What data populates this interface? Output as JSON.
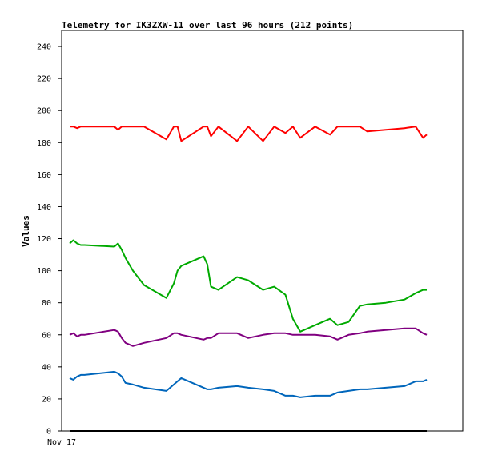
{
  "chart_data": {
    "type": "line",
    "title": "Telemetry for IK3ZXW-11 over last 96 hours (212 points)",
    "ylabel": "Values",
    "xlabel": "",
    "x_tick_labels": [
      "Nov 17"
    ],
    "ylim": [
      0,
      250
    ],
    "y_ticks": [
      0,
      20,
      40,
      60,
      80,
      100,
      120,
      140,
      160,
      180,
      200,
      220,
      240
    ],
    "grid": false,
    "x_hours": [
      0,
      1,
      2,
      3,
      4,
      12,
      13,
      14,
      15,
      17,
      20,
      26,
      28,
      29,
      30,
      36,
      37,
      38,
      40,
      45,
      48,
      52,
      55,
      58,
      60,
      62,
      66,
      70,
      72,
      75,
      78,
      80,
      85,
      90,
      93,
      95,
      96
    ],
    "series": [
      {
        "color": "#ff0000",
        "values": [
          190,
          190,
          189,
          190,
          190,
          190,
          188,
          190,
          190,
          190,
          190,
          182,
          190,
          190,
          181,
          190,
          190,
          184,
          190,
          181,
          190,
          181,
          190,
          186,
          190,
          183,
          190,
          185,
          190,
          190,
          190,
          187,
          188,
          189,
          190,
          183,
          185
        ]
      },
      {
        "color": "#00aa00",
        "values": [
          117,
          119,
          117,
          116,
          116,
          115,
          117,
          113,
          108,
          100,
          91,
          83,
          92,
          100,
          103,
          109,
          104,
          90,
          88,
          96,
          94,
          88,
          90,
          85,
          70,
          62,
          66,
          70,
          66,
          68,
          78,
          79,
          80,
          82,
          86,
          88,
          88
        ]
      },
      {
        "color": "#800080",
        "values": [
          60,
          61,
          59,
          60,
          60,
          63,
          62,
          58,
          55,
          53,
          55,
          58,
          61,
          61,
          60,
          57,
          58,
          58,
          61,
          61,
          58,
          60,
          61,
          61,
          60,
          60,
          60,
          59,
          57,
          60,
          61,
          62,
          63,
          64,
          64,
          61,
          60
        ]
      },
      {
        "color": "#0066bb",
        "values": [
          33,
          32,
          34,
          35,
          35,
          37,
          36,
          34,
          30,
          29,
          27,
          25,
          29,
          31,
          33,
          27,
          26,
          26,
          27,
          28,
          27,
          26,
          25,
          22,
          22,
          21,
          22,
          22,
          24,
          25,
          26,
          26,
          27,
          28,
          31,
          31,
          32
        ]
      },
      {
        "color": "#000000",
        "values": [
          0,
          0,
          0,
          0,
          0,
          0,
          0,
          0,
          0,
          0,
          0,
          0,
          0,
          0,
          0,
          0,
          0,
          0,
          0,
          0,
          0,
          0,
          0,
          0,
          0,
          0,
          0,
          0,
          0,
          0,
          0,
          0,
          0,
          0,
          0,
          0,
          0
        ]
      }
    ]
  }
}
